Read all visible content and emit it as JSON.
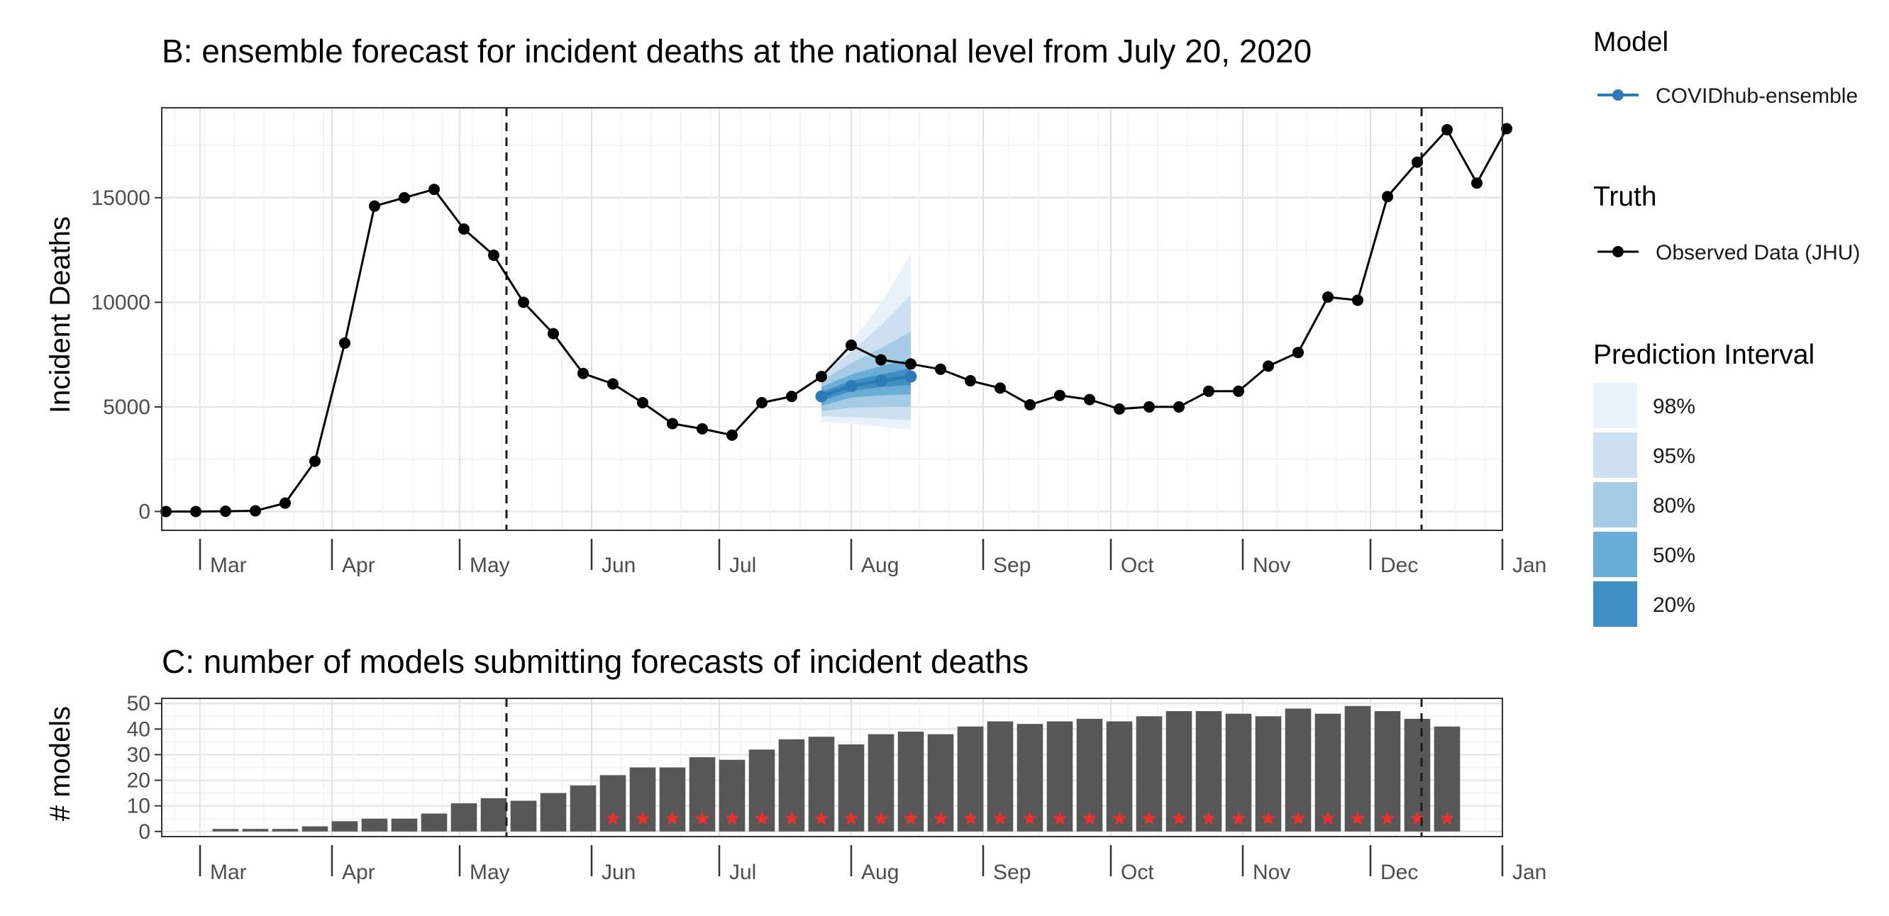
{
  "chart_data": [
    {
      "id": "B",
      "type": "line",
      "title": "B: ensemble forecast for incident deaths at the national level from July 20, 2020",
      "ylabel": "Incident Deaths",
      "xlabel": "",
      "x_axis_type": "date",
      "xlim": [
        "2020-02-21",
        "2021-01-01"
      ],
      "ylim": [
        -900,
        19300
      ],
      "grid": true,
      "y_ticks": [
        0,
        5000,
        10000,
        15000
      ],
      "y_tick_labels": [
        "0",
        "5000",
        "10000",
        "15000"
      ],
      "x_tick_labels": [
        {
          "date": "2020-03-01",
          "label": "Mar"
        },
        {
          "date": "2020-04-01",
          "label": "Apr"
        },
        {
          "date": "2020-05-01",
          "label": "May"
        },
        {
          "date": "2020-06-01",
          "label": "Jun"
        },
        {
          "date": "2020-07-01",
          "label": "Jul"
        },
        {
          "date": "2020-08-01",
          "label": "Aug"
        },
        {
          "date": "2020-09-01",
          "label": "Sep"
        },
        {
          "date": "2020-10-01",
          "label": "Oct"
        },
        {
          "date": "2020-11-01",
          "label": "Nov"
        },
        {
          "date": "2020-12-01",
          "label": "Dec"
        },
        {
          "date": "2021-01-01",
          "label": "Jan"
        }
      ],
      "vlines": [
        "2020-05-12",
        "2020-12-13"
      ],
      "observed": {
        "name": "Observed Data (JHU)",
        "color": "#000000",
        "x": [
          "2020-02-22",
          "2020-02-29",
          "2020-03-07",
          "2020-03-14",
          "2020-03-21",
          "2020-03-28",
          "2020-04-04",
          "2020-04-11",
          "2020-04-18",
          "2020-04-25",
          "2020-05-02",
          "2020-05-09",
          "2020-05-16",
          "2020-05-23",
          "2020-05-30",
          "2020-06-06",
          "2020-06-13",
          "2020-06-20",
          "2020-06-27",
          "2020-07-04",
          "2020-07-11",
          "2020-07-18",
          "2020-07-25",
          "2020-08-01",
          "2020-08-08",
          "2020-08-15",
          "2020-08-22",
          "2020-08-29",
          "2020-09-05",
          "2020-09-12",
          "2020-09-19",
          "2020-09-26",
          "2020-10-03",
          "2020-10-10",
          "2020-10-17",
          "2020-10-24",
          "2020-10-31",
          "2020-11-07",
          "2020-11-14",
          "2020-11-21",
          "2020-11-28",
          "2020-12-05",
          "2020-12-12",
          "2020-12-19",
          "2020-12-26",
          "2021-01-02"
        ],
        "y": [
          0,
          0,
          10,
          30,
          400,
          2400,
          8050,
          14600,
          15000,
          15400,
          13500,
          12250,
          10000,
          8500,
          6600,
          6100,
          5200,
          4200,
          3950,
          3650,
          5200,
          5500,
          6450,
          7950,
          7250,
          7050,
          6800,
          6250,
          5900,
          5100,
          5550,
          5350,
          4900,
          5000,
          5000,
          5750,
          5750,
          6950,
          7600,
          10250,
          10100,
          15050,
          16700,
          18250,
          15700,
          18300
        ]
      },
      "forecast": {
        "name": "COVIDhub-ensemble",
        "color": "#2c7bb6",
        "x": [
          "2020-07-25",
          "2020-08-01",
          "2020-08-08",
          "2020-08-15"
        ],
        "median": [
          5500,
          6000,
          6250,
          6450
        ],
        "intervals": [
          {
            "level": "98%",
            "color": "#e9f1fa",
            "lower": [
              4300,
              4200,
              4050,
              3900
            ],
            "upper": [
              6600,
              8100,
              9950,
              12300
            ]
          },
          {
            "level": "95%",
            "color": "#cde0f1",
            "lower": [
              4550,
              4500,
              4450,
              4350
            ],
            "upper": [
              6450,
              7650,
              8900,
              10350
            ]
          },
          {
            "level": "80%",
            "color": "#a6cbe5",
            "lower": [
              4800,
              4950,
              5000,
              5000
            ],
            "upper": [
              6250,
              7100,
              7800,
              8600
            ]
          },
          {
            "level": "50%",
            "color": "#6aaed6",
            "lower": [
              5050,
              5450,
              5550,
              5600
            ],
            "upper": [
              5950,
              6550,
              6950,
              7300
            ]
          },
          {
            "level": "20%",
            "color": "#3f8fc4",
            "lower": [
              5300,
              5750,
              5950,
              6050
            ],
            "upper": [
              5700,
              6250,
              6550,
              6850
            ]
          }
        ]
      }
    },
    {
      "id": "C",
      "type": "bar",
      "title": "C: number of models submitting forecasts of incident deaths",
      "ylabel": "# models",
      "xlabel": "",
      "x_axis_type": "date",
      "xlim": [
        "2020-02-21",
        "2021-01-01"
      ],
      "ylim": [
        -2,
        52
      ],
      "grid": true,
      "y_ticks": [
        0,
        10,
        20,
        30,
        40,
        50
      ],
      "y_tick_labels": [
        "0",
        "10",
        "20",
        "30",
        "40",
        "50"
      ],
      "x_tick_labels": [
        {
          "date": "2020-03-01",
          "label": "Mar"
        },
        {
          "date": "2020-04-01",
          "label": "Apr"
        },
        {
          "date": "2020-05-01",
          "label": "May"
        },
        {
          "date": "2020-06-01",
          "label": "Jun"
        },
        {
          "date": "2020-07-01",
          "label": "Jul"
        },
        {
          "date": "2020-08-01",
          "label": "Aug"
        },
        {
          "date": "2020-09-01",
          "label": "Sep"
        },
        {
          "date": "2020-10-01",
          "label": "Oct"
        },
        {
          "date": "2020-11-01",
          "label": "Nov"
        },
        {
          "date": "2020-12-01",
          "label": "Dec"
        },
        {
          "date": "2021-01-01",
          "label": "Jan"
        }
      ],
      "vlines": [
        "2020-05-12",
        "2020-12-13"
      ],
      "bar_color": "#575757",
      "star_color": "#e8322e",
      "x": [
        "2020-02-22",
        "2020-02-29",
        "2020-03-07",
        "2020-03-14",
        "2020-03-21",
        "2020-03-28",
        "2020-04-04",
        "2020-04-11",
        "2020-04-18",
        "2020-04-25",
        "2020-05-02",
        "2020-05-09",
        "2020-05-16",
        "2020-05-23",
        "2020-05-30",
        "2020-06-06",
        "2020-06-13",
        "2020-06-20",
        "2020-06-27",
        "2020-07-04",
        "2020-07-11",
        "2020-07-18",
        "2020-07-25",
        "2020-08-01",
        "2020-08-08",
        "2020-08-15",
        "2020-08-22",
        "2020-08-29",
        "2020-09-05",
        "2020-09-12",
        "2020-09-19",
        "2020-09-26",
        "2020-10-03",
        "2020-10-10",
        "2020-10-17",
        "2020-10-24",
        "2020-10-31",
        "2020-11-07",
        "2020-11-14",
        "2020-11-21",
        "2020-11-28",
        "2020-12-05",
        "2020-12-12",
        "2020-12-19",
        "2020-12-26"
      ],
      "values": [
        0,
        0,
        1,
        1,
        1,
        2,
        4,
        5,
        5,
        7,
        11,
        13,
        12,
        15,
        18,
        22,
        25,
        25,
        29,
        28,
        32,
        36,
        37,
        34,
        38,
        39,
        38,
        41,
        43,
        42,
        43,
        44,
        43,
        45,
        47,
        47,
        46,
        45,
        48,
        46,
        49,
        47,
        44,
        41,
        0
      ],
      "ensemble_included": [
        false,
        false,
        false,
        false,
        false,
        false,
        false,
        false,
        false,
        false,
        false,
        false,
        false,
        false,
        false,
        true,
        true,
        true,
        true,
        true,
        true,
        true,
        true,
        true,
        true,
        true,
        true,
        true,
        true,
        true,
        true,
        true,
        true,
        true,
        true,
        true,
        true,
        true,
        true,
        true,
        true,
        true,
        true,
        true,
        false
      ]
    }
  ],
  "legend": {
    "model_title": "Model",
    "model_label": "COVIDhub-ensemble",
    "truth_title": "Truth",
    "truth_label": "Observed Data (JHU)",
    "pi_title": "Prediction Interval",
    "pi_items": [
      {
        "label": "98%",
        "color": "#e9f1fa"
      },
      {
        "label": "95%",
        "color": "#cde0f1"
      },
      {
        "label": "80%",
        "color": "#a6cbe5"
      },
      {
        "label": "50%",
        "color": "#6aaed6"
      },
      {
        "label": "20%",
        "color": "#3f8fc4"
      }
    ]
  }
}
